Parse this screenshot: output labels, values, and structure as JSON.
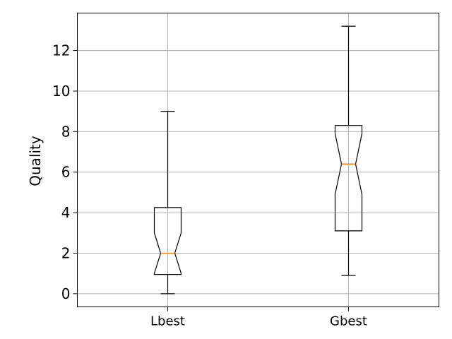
{
  "chart_data": {
    "type": "boxplot",
    "notched": true,
    "title": "",
    "xlabel": "",
    "ylabel": "Quality",
    "ylim": [
      -0.65,
      13.85
    ],
    "yticks": [
      0,
      2,
      4,
      6,
      8,
      10,
      12
    ],
    "grid": true,
    "categories": [
      "Lbest",
      "Gbest"
    ],
    "boxes": [
      {
        "category": "Lbest",
        "min": 0.0,
        "q1": 0.95,
        "median": 2.0,
        "q3": 4.25,
        "max": 9.0,
        "notch_low": 1.0,
        "notch_high": 3.0
      },
      {
        "category": "Gbest",
        "min": 0.9,
        "q1": 3.1,
        "median": 6.4,
        "q3": 8.3,
        "max": 13.2,
        "notch_low": 4.9,
        "notch_high": 7.9
      }
    ],
    "colors": {
      "box": "#000000",
      "median": "#ff7f0e",
      "grid": "#b0b0b0"
    }
  }
}
